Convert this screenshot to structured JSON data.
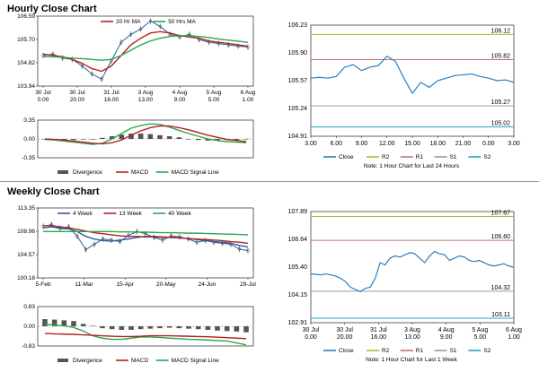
{
  "sections": {
    "hourly_title": "Hourly Close Chart",
    "weekly_title": "Weekly Close Chart"
  },
  "colors": {
    "price": "#2a5f9e",
    "ma20": "#b22222",
    "ma50": "#2aa84a",
    "divergence": "#555555",
    "r2": "#b5b53a",
    "r1": "#c87070",
    "s1": "#9a9a9a",
    "s2": "#2aa0c8",
    "close": "#2a7fc0"
  },
  "chart_data": [
    {
      "id": "hourly_price",
      "type": "line",
      "legend": [
        "20 Hr MA",
        "50 Hrs MA"
      ],
      "ylim": [
        103.94,
        106.59
      ],
      "yticks": [
        "106.59",
        "105.70",
        "104.82",
        "103.94"
      ],
      "xticks": [
        [
          "30 Jul",
          "0.00"
        ],
        [
          "30 Jul",
          "20.00"
        ],
        [
          "31 Jul",
          "16.00"
        ],
        [
          "3 Aug",
          "13.00"
        ],
        [
          "4 Aug",
          "9.00"
        ],
        [
          "5 Aug",
          "5.00"
        ],
        [
          "6 Aug",
          "1.00"
        ]
      ],
      "close": [
        105.1,
        105.15,
        105.0,
        104.95,
        104.7,
        104.4,
        104.2,
        104.9,
        105.6,
        105.9,
        106.1,
        106.4,
        106.2,
        105.9,
        105.8,
        105.9,
        105.7,
        105.6,
        105.55,
        105.5,
        105.45,
        105.42
      ],
      "series": [
        {
          "name": "20 Hr MA",
          "values": [
            105.15,
            105.1,
            105.05,
            104.95,
            104.8,
            104.6,
            104.5,
            104.7,
            105.1,
            105.5,
            105.75,
            105.95,
            106.0,
            105.95,
            105.85,
            105.8,
            105.75,
            105.65,
            105.6,
            105.55,
            105.5,
            105.45
          ]
        },
        {
          "name": "50 Hrs MA",
          "values": [
            105.05,
            105.05,
            105.03,
            105.0,
            104.98,
            104.95,
            104.92,
            104.95,
            105.1,
            105.3,
            105.5,
            105.65,
            105.75,
            105.82,
            105.85,
            105.85,
            105.82,
            105.78,
            105.72,
            105.68,
            105.64,
            105.6
          ]
        }
      ]
    },
    {
      "id": "hourly_macd",
      "type": "line",
      "ylim": [
        -0.35,
        0.35
      ],
      "yticks": [
        "0.35",
        "0.00",
        "-0.35"
      ],
      "legend": [
        "Divergence",
        "MACD",
        "MACD Signal Line"
      ],
      "divergence": [
        0.0,
        -0.01,
        -0.02,
        -0.02,
        -0.01,
        0.0,
        0.02,
        0.05,
        0.08,
        0.1,
        0.1,
        0.09,
        0.07,
        0.05,
        0.03,
        0.0,
        -0.02,
        -0.03,
        -0.03,
        -0.02,
        -0.02,
        -0.01
      ],
      "series": [
        {
          "name": "MACD",
          "values": [
            -0.01,
            -0.02,
            -0.04,
            -0.06,
            -0.08,
            -0.1,
            -0.08,
            0.0,
            0.1,
            0.2,
            0.25,
            0.28,
            0.27,
            0.22,
            0.16,
            0.1,
            0.05,
            0.0,
            -0.03,
            -0.05,
            -0.06,
            -0.07
          ]
        },
        {
          "name": "MACD Signal Line",
          "values": [
            0.0,
            -0.01,
            -0.02,
            -0.04,
            -0.06,
            -0.08,
            -0.09,
            -0.07,
            -0.02,
            0.07,
            0.15,
            0.21,
            0.24,
            0.24,
            0.21,
            0.17,
            0.12,
            0.07,
            0.03,
            -0.01,
            -0.03,
            -0.05
          ]
        }
      ]
    },
    {
      "id": "hourly_close",
      "type": "line",
      "ylim": [
        104.91,
        106.23
      ],
      "yticks": [
        "106.23",
        "105.90",
        "105.57",
        "105.24",
        "104.91"
      ],
      "xticks": [
        "3.00",
        "6.00",
        "9.00",
        "12.00",
        "15.00",
        "18.00",
        "21.00",
        "0.00",
        "3.00"
      ],
      "close": [
        105.6,
        105.61,
        105.6,
        105.62,
        105.73,
        105.76,
        105.69,
        105.73,
        105.75,
        105.86,
        105.8,
        105.6,
        105.42,
        105.55,
        105.49,
        105.57,
        105.6,
        105.63,
        105.64,
        105.65,
        105.62,
        105.6,
        105.57,
        105.58,
        105.55
      ],
      "levels": [
        {
          "name": "R2",
          "value": 106.12,
          "label": "106.12"
        },
        {
          "name": "R1",
          "value": 105.82,
          "label": "105.82"
        },
        {
          "name": "S1",
          "value": 105.27,
          "label": "105.27"
        },
        {
          "name": "S2",
          "value": 105.02,
          "label": "105.02"
        }
      ],
      "legend": [
        "Close",
        "R2",
        "R1",
        "S1",
        "S2"
      ],
      "note": "Note: 1 Hour Chart for Last 24 Hours"
    },
    {
      "id": "weekly_price",
      "type": "line",
      "legend": [
        "4 Week",
        "13 Week",
        "40 Week"
      ],
      "ylim": [
        100.18,
        113.35
      ],
      "yticks": [
        "113.35",
        "108.96",
        "104.57",
        "100.18"
      ],
      "xticks": [
        "5-Feb",
        "11-Mar",
        "15-Apr",
        "20-May",
        "24-Jun",
        "29-Jul"
      ],
      "close": [
        109.9,
        110.2,
        109.5,
        109.8,
        108.0,
        105.5,
        106.5,
        107.5,
        107.3,
        107.0,
        108.2,
        108.9,
        108.5,
        107.8,
        107.3,
        108.1,
        107.9,
        107.5,
        106.9,
        107.2,
        106.9,
        106.7,
        106.5,
        105.6,
        105.3
      ],
      "series": [
        {
          "name": "4 Week",
          "values": [
            109.6,
            109.8,
            109.5,
            109.4,
            108.9,
            108.0,
            107.5,
            107.2,
            107.1,
            107.3,
            107.5,
            107.8,
            108.0,
            108.0,
            107.9,
            107.8,
            107.7,
            107.6,
            107.4,
            107.2,
            107.0,
            106.9,
            106.7,
            106.3,
            106.0
          ]
        },
        {
          "name": "13 Week",
          "values": [
            110.0,
            110.0,
            109.8,
            109.6,
            109.3,
            109.0,
            108.7,
            108.5,
            108.3,
            108.1,
            108.0,
            108.0,
            107.9,
            107.9,
            107.8,
            107.8,
            107.7,
            107.6,
            107.5,
            107.4,
            107.3,
            107.2,
            107.0,
            106.9,
            106.7
          ]
        },
        {
          "name": "40 Week",
          "values": [
            108.9,
            108.9,
            108.9,
            108.9,
            108.9,
            108.9,
            108.9,
            108.9,
            108.9,
            108.85,
            108.85,
            108.8,
            108.8,
            108.75,
            108.7,
            108.7,
            108.65,
            108.6,
            108.6,
            108.55,
            108.5,
            108.45,
            108.4,
            108.35,
            108.3
          ]
        }
      ]
    },
    {
      "id": "weekly_macd",
      "type": "line",
      "ylim": [
        -0.83,
        0.83
      ],
      "yticks": [
        "0.83",
        "0.00",
        "-0.83"
      ],
      "legend": [
        "Divergence",
        "MACD",
        "MACD Signal Line"
      ],
      "divergence": [
        0.3,
        0.28,
        0.25,
        0.22,
        0.1,
        0.02,
        -0.08,
        -0.12,
        -0.15,
        -0.15,
        -0.12,
        -0.1,
        -0.08,
        -0.06,
        -0.08,
        -0.1,
        -0.12,
        -0.15,
        -0.18,
        -0.2,
        -0.22,
        -0.25
      ],
      "series": [
        {
          "name": "MACD",
          "values": [
            0.08,
            0.05,
            0.02,
            -0.05,
            -0.2,
            -0.4,
            -0.5,
            -0.55,
            -0.55,
            -0.5,
            -0.45,
            -0.45,
            -0.47,
            -0.5,
            -0.52,
            -0.55,
            -0.56,
            -0.58,
            -0.6,
            -0.62,
            -0.7,
            -0.78
          ]
        },
        {
          "name": "MACD Signal Line",
          "values": [
            -0.3,
            -0.32,
            -0.33,
            -0.34,
            -0.36,
            -0.38,
            -0.4,
            -0.42,
            -0.43,
            -0.43,
            -0.42,
            -0.4,
            -0.4,
            -0.4,
            -0.41,
            -0.42,
            -0.43,
            -0.44,
            -0.46,
            -0.48,
            -0.5,
            -0.52
          ]
        }
      ]
    },
    {
      "id": "weekly_close",
      "type": "line",
      "ylim": [
        102.91,
        107.89
      ],
      "yticks": [
        "107.89",
        "106.64",
        "105.40",
        "104.15",
        "102.91"
      ],
      "xticks": [
        [
          "30 Jul",
          "0.00"
        ],
        [
          "30 Jul",
          "20.00"
        ],
        [
          "31 Jul",
          "16.00"
        ],
        [
          "3 Aug",
          "13.00"
        ],
        [
          "4 Aug",
          "9.00"
        ],
        [
          "5 Aug",
          "5.00"
        ],
        [
          "6 Aug",
          "1.00"
        ]
      ],
      "close": [
        105.1,
        105.08,
        105.05,
        105.1,
        105.05,
        105.0,
        104.9,
        104.75,
        104.5,
        104.4,
        104.3,
        104.45,
        104.5,
        104.9,
        105.6,
        105.5,
        105.8,
        105.9,
        105.85,
        105.95,
        106.05,
        106.0,
        105.8,
        105.6,
        105.9,
        106.1,
        106.0,
        105.95,
        105.7,
        105.8,
        105.9,
        105.85,
        105.7,
        105.65,
        105.7,
        105.6,
        105.5,
        105.45,
        105.5,
        105.55,
        105.45,
        105.4
      ],
      "levels": [
        {
          "name": "R2",
          "value": 107.67,
          "label": "107.67"
        },
        {
          "name": "R1",
          "value": 106.6,
          "label": "106.60"
        },
        {
          "name": "S1",
          "value": 104.32,
          "label": "104.32"
        },
        {
          "name": "S2",
          "value": 103.11,
          "label": "103.11"
        }
      ],
      "legend": [
        "Close",
        "R2",
        "R1",
        "S1",
        "S2"
      ],
      "note": "Note: 1 Hour Chart for Last 1 Week"
    }
  ]
}
